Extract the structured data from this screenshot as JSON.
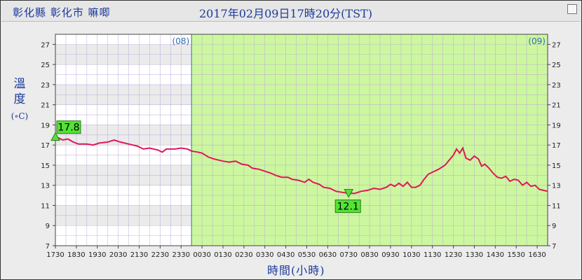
{
  "header": {
    "location": "彰化縣 彰化市 嘛唧",
    "timestamp": "2017年02月09日17時20分(TST)"
  },
  "axis_titles": {
    "y_line1": "溫",
    "y_line2": "度",
    "y_unit": "(∘C)",
    "x": "時間(小時)"
  },
  "colors": {
    "line": "#e0165a",
    "day_bg": "#cdf79f",
    "band": "#ebebeb",
    "grid": "#b8a8d8",
    "marker": "#53e334",
    "divider": "#2c6fb8"
  },
  "chart_data": {
    "type": "line",
    "ylim": [
      7,
      28
    ],
    "yticks": [
      7,
      9,
      11,
      13,
      15,
      17,
      19,
      21,
      23,
      25,
      27
    ],
    "xlim": [
      0,
      23.5
    ],
    "xtick_labels": [
      "1730",
      "1830",
      "1930",
      "2030",
      "2130",
      "2230",
      "2330",
      "0030",
      "0130",
      "0230",
      "0330",
      "0430",
      "0530",
      "0630",
      "0730",
      "0830",
      "0930",
      "1030",
      "1130",
      "1230",
      "1330",
      "1430",
      "1530",
      "1630"
    ],
    "day_labels": [
      {
        "label": "(08)",
        "x": 6.5
      },
      {
        "label": "(09)",
        "x": 23.5
      }
    ],
    "shaded_from_x": 6.5,
    "max_marker": {
      "x": 0.0,
      "value": 17.8,
      "label": "17.8"
    },
    "min_marker": {
      "x": 14.0,
      "value": 12.1,
      "label": "12.1"
    },
    "series": [
      {
        "values": [
          [
            0.0,
            17.8
          ],
          [
            0.15,
            17.7
          ],
          [
            0.35,
            17.5
          ],
          [
            0.6,
            17.6
          ],
          [
            0.85,
            17.3
          ],
          [
            1.1,
            17.1
          ],
          [
            1.5,
            17.1
          ],
          [
            1.8,
            17.0
          ],
          [
            2.1,
            17.2
          ],
          [
            2.5,
            17.3
          ],
          [
            2.8,
            17.5
          ],
          [
            3.1,
            17.3
          ],
          [
            3.5,
            17.1
          ],
          [
            3.9,
            16.9
          ],
          [
            4.2,
            16.6
          ],
          [
            4.5,
            16.7
          ],
          [
            4.9,
            16.5
          ],
          [
            5.1,
            16.3
          ],
          [
            5.3,
            16.6
          ],
          [
            5.7,
            16.6
          ],
          [
            6.0,
            16.7
          ],
          [
            6.3,
            16.6
          ],
          [
            6.5,
            16.4
          ],
          [
            6.8,
            16.3
          ],
          [
            7.0,
            16.2
          ],
          [
            7.3,
            15.8
          ],
          [
            7.6,
            15.6
          ],
          [
            8.0,
            15.4
          ],
          [
            8.3,
            15.3
          ],
          [
            8.6,
            15.4
          ],
          [
            8.9,
            15.1
          ],
          [
            9.2,
            15.0
          ],
          [
            9.4,
            14.7
          ],
          [
            9.7,
            14.6
          ],
          [
            10.0,
            14.4
          ],
          [
            10.3,
            14.2
          ],
          [
            10.5,
            14.0
          ],
          [
            10.8,
            13.8
          ],
          [
            11.1,
            13.8
          ],
          [
            11.3,
            13.6
          ],
          [
            11.6,
            13.5
          ],
          [
            11.9,
            13.3
          ],
          [
            12.1,
            13.6
          ],
          [
            12.3,
            13.3
          ],
          [
            12.6,
            13.1
          ],
          [
            12.8,
            12.8
          ],
          [
            13.1,
            12.7
          ],
          [
            13.4,
            12.4
          ],
          [
            13.7,
            12.3
          ],
          [
            14.0,
            12.2
          ],
          [
            14.3,
            12.2
          ],
          [
            14.6,
            12.4
          ],
          [
            14.9,
            12.5
          ],
          [
            15.2,
            12.7
          ],
          [
            15.5,
            12.6
          ],
          [
            15.8,
            12.8
          ],
          [
            16.0,
            13.1
          ],
          [
            16.2,
            12.9
          ],
          [
            16.4,
            13.2
          ],
          [
            16.6,
            12.9
          ],
          [
            16.8,
            13.3
          ],
          [
            17.0,
            12.8
          ],
          [
            17.2,
            12.8
          ],
          [
            17.4,
            13.0
          ],
          [
            17.6,
            13.6
          ],
          [
            17.8,
            14.1
          ],
          [
            18.0,
            14.3
          ],
          [
            18.3,
            14.6
          ],
          [
            18.6,
            15.0
          ],
          [
            18.8,
            15.5
          ],
          [
            19.0,
            16.0
          ],
          [
            19.15,
            16.6
          ],
          [
            19.3,
            16.2
          ],
          [
            19.45,
            16.7
          ],
          [
            19.6,
            15.7
          ],
          [
            19.8,
            15.5
          ],
          [
            20.0,
            15.9
          ],
          [
            20.2,
            15.6
          ],
          [
            20.35,
            14.9
          ],
          [
            20.5,
            15.1
          ],
          [
            20.7,
            14.7
          ],
          [
            20.9,
            14.2
          ],
          [
            21.1,
            13.8
          ],
          [
            21.3,
            13.7
          ],
          [
            21.5,
            13.9
          ],
          [
            21.7,
            13.4
          ],
          [
            21.9,
            13.6
          ],
          [
            22.1,
            13.5
          ],
          [
            22.3,
            13.0
          ],
          [
            22.5,
            13.3
          ],
          [
            22.7,
            12.9
          ],
          [
            22.9,
            13.0
          ],
          [
            23.1,
            12.6
          ],
          [
            23.3,
            12.5
          ],
          [
            23.5,
            12.4
          ]
        ]
      }
    ]
  }
}
